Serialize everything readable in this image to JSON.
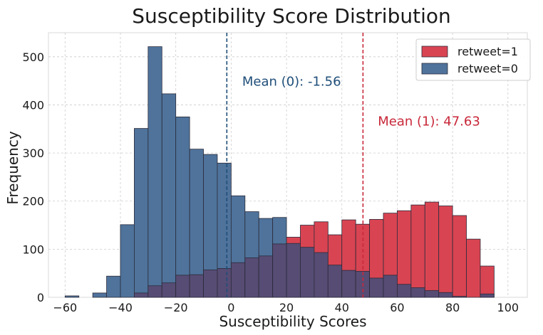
{
  "chart_data": {
    "type": "bar",
    "title": "Susceptibility Score Distribution",
    "xlabel": "Susceptibility Scores",
    "ylabel": "Frequency",
    "xlim": [
      -66,
      107
    ],
    "ylim": [
      0,
      550
    ],
    "xticks": [
      -60,
      -40,
      -20,
      0,
      20,
      40,
      60,
      80,
      100
    ],
    "yticks": [
      0,
      100,
      200,
      300,
      400,
      500
    ],
    "grid": true,
    "legend_position": "top-right",
    "bin_edges": [
      -60,
      -55,
      -50,
      -45,
      -40,
      -35,
      -30,
      -25,
      -20,
      -15,
      -10,
      -5,
      0,
      5,
      10,
      15,
      20,
      25,
      30,
      35,
      40,
      45,
      50,
      55,
      60,
      65,
      70,
      75,
      80,
      85,
      90,
      95,
      100
    ],
    "series": [
      {
        "name": "retweet=1",
        "color": "#d94452",
        "values": [
          0,
          0,
          0,
          0,
          0,
          9,
          24,
          30,
          46,
          47,
          57,
          60,
          72,
          82,
          86,
          111,
          125,
          150,
          157,
          130,
          161,
          152,
          162,
          175,
          180,
          192,
          198,
          190,
          170,
          121,
          65,
          0
        ]
      },
      {
        "name": "retweet=0",
        "color": "#4f739b",
        "values": [
          3,
          0,
          9,
          44,
          151,
          351,
          521,
          423,
          375,
          308,
          297,
          279,
          211,
          178,
          164,
          166,
          112,
          104,
          93,
          67,
          56,
          54,
          40,
          46,
          27,
          20,
          14,
          10,
          2,
          0,
          7,
          0
        ]
      }
    ],
    "overlap_color": "#574c74",
    "mean_lines": [
      {
        "label": "Mean (0): -1.56",
        "value": -1.56,
        "color": "#1f4e79",
        "label_x": 4,
        "label_y": 440
      },
      {
        "label": "Mean (1): 47.63",
        "value": 47.63,
        "color": "#c8283a",
        "label_x": 53,
        "label_y": 357
      }
    ]
  }
}
